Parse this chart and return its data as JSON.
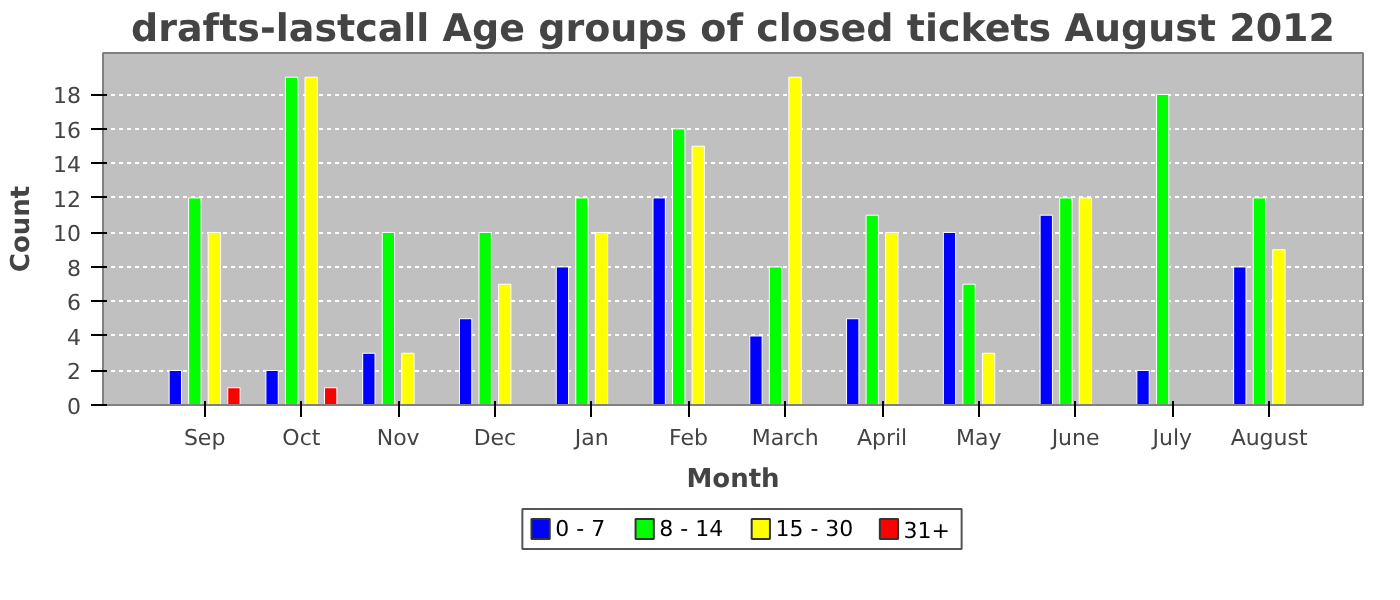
{
  "chart_data": {
    "type": "bar",
    "title": "drafts-lastcall Age groups of closed tickets August 2012",
    "xlabel": "Month",
    "ylabel": "Count",
    "categories": [
      "Sep",
      "Oct",
      "Nov",
      "Dec",
      "Jan",
      "Feb",
      "March",
      "April",
      "May",
      "June",
      "July",
      "August"
    ],
    "series": [
      {
        "name": "0 - 7",
        "color": "#0000ff",
        "values": [
          2,
          2,
          3,
          5,
          8,
          12,
          4,
          5,
          10,
          11,
          2,
          8
        ]
      },
      {
        "name": "8 - 14",
        "color": "#00ff00",
        "values": [
          12,
          19,
          10,
          10,
          12,
          16,
          8,
          11,
          7,
          12,
          18,
          12
        ]
      },
      {
        "name": "15 - 30",
        "color": "#ffff00",
        "values": [
          10,
          19,
          3,
          7,
          10,
          15,
          19,
          10,
          3,
          12,
          null,
          9
        ]
      },
      {
        "name": "31+",
        "color": "#ff0000",
        "values": [
          1,
          1,
          null,
          null,
          null,
          null,
          null,
          null,
          null,
          null,
          null,
          null
        ]
      }
    ],
    "ylim": [
      0,
      20.4
    ],
    "yticks": [
      0,
      2,
      4,
      6,
      8,
      10,
      12,
      14,
      16,
      18
    ],
    "grid": "y",
    "legend": "bottom"
  }
}
